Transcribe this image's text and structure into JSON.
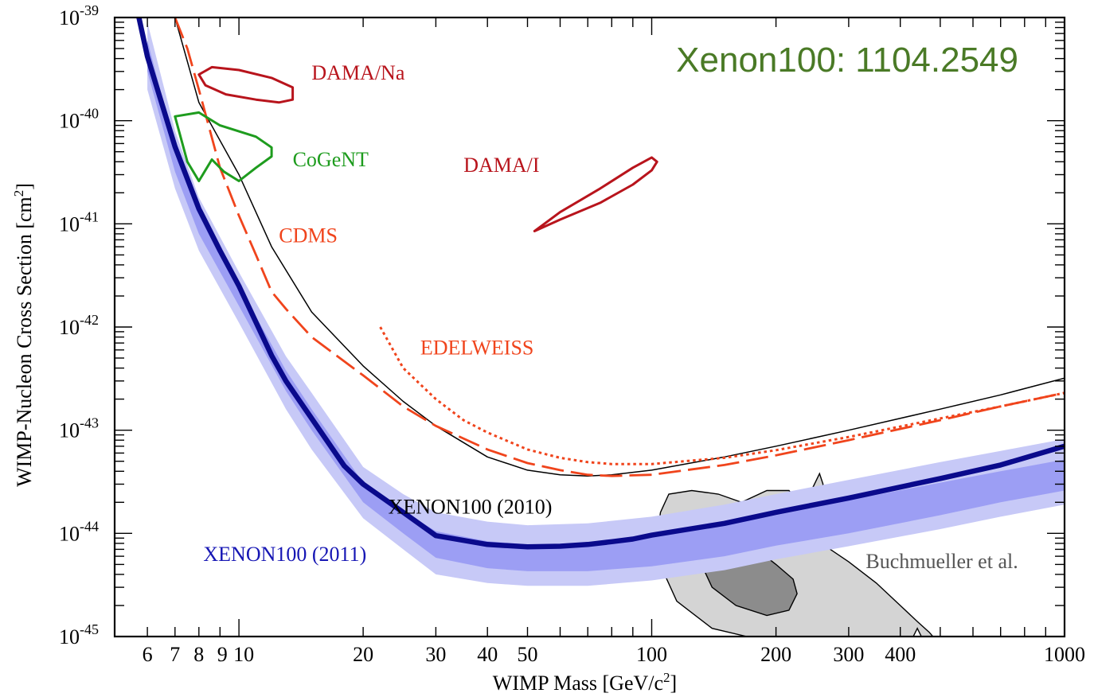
{
  "chart_data": {
    "type": "line",
    "title": "Xenon100: 1104.2549",
    "xlabel": "WIMP Mass [GeV/c",
    "xlabel_sup": "2",
    "xlabel_tail": "]",
    "ylabel": "WIMP-Nucleon Cross Section [cm",
    "ylabel_sup": "2",
    "ylabel_tail": "]",
    "x_scale": "log",
    "y_scale": "log",
    "xlim": [
      5,
      1000
    ],
    "ylim": [
      1e-45,
      1e-39
    ],
    "grid": false,
    "x_ticks": [
      {
        "v": 6,
        "label": "6"
      },
      {
        "v": 7,
        "label": "7"
      },
      {
        "v": 8,
        "label": "8"
      },
      {
        "v": 9,
        "label": "9"
      },
      {
        "v": 10,
        "label": "10"
      },
      {
        "v": 20,
        "label": "20"
      },
      {
        "v": 30,
        "label": "30"
      },
      {
        "v": 40,
        "label": "40"
      },
      {
        "v": 50,
        "label": "50"
      },
      {
        "v": 100,
        "label": "100"
      },
      {
        "v": 200,
        "label": "200"
      },
      {
        "v": 300,
        "label": "300"
      },
      {
        "v": 400,
        "label": "400"
      },
      {
        "v": 1000,
        "label": "1000"
      }
    ],
    "y_ticks": [
      {
        "exp": -45,
        "base": "10",
        "sup": "-45"
      },
      {
        "exp": -44,
        "base": "10",
        "sup": "-44"
      },
      {
        "exp": -43,
        "base": "10",
        "sup": "-43"
      },
      {
        "exp": -42,
        "base": "10",
        "sup": "-42"
      },
      {
        "exp": -41,
        "base": "10",
        "sup": "-41"
      },
      {
        "exp": -40,
        "base": "10",
        "sup": "-40"
      },
      {
        "exp": -39,
        "base": "10",
        "sup": "-39"
      }
    ],
    "colors": {
      "xenon2011": "#0a0a8c",
      "band_outer": "#c7c9f7",
      "band_inner": "#9c9ef4",
      "xenon2010": "#000000",
      "cdms": "#f0441c",
      "edelweiss": "#f0441c",
      "dama": "#b8141c",
      "cogent": "#1e9c1e",
      "susy_outer": "#d4d4d4",
      "susy_inner": "#8c8c8c",
      "banner": "#4a7a26"
    },
    "band_outer": {
      "x": [
        6,
        7,
        8,
        10,
        13,
        15,
        20,
        25,
        30,
        40,
        50,
        70,
        100,
        150,
        200,
        300,
        500,
        700,
        1000
      ],
      "lo": [
        2e-40,
        2.2e-41,
        5.5e-42,
        1.1e-42,
        1.6e-43,
        6.5e-44,
        1.4e-44,
        7e-45,
        4e-45,
        3.3e-45,
        3.1e-45,
        3.1e-45,
        3.5e-45,
        4.4e-45,
        5.6e-45,
        7.5e-45,
        1.1e-44,
        1.45e-44,
        1.9e-44
      ],
      "hi": [
        9e-40,
        8e-41,
        1.8e-41,
        3.4e-42,
        5.2e-43,
        2.3e-43,
        4.4e-44,
        2.4e-44,
        1.6e-44,
        1.3e-44,
        1.2e-44,
        1.25e-44,
        1.45e-44,
        1.9e-44,
        2.4e-44,
        3.3e-44,
        4.9e-44,
        6.3e-44,
        8.2e-44
      ]
    },
    "band_inner": {
      "x": [
        6,
        7,
        8,
        10,
        13,
        15,
        20,
        25,
        30,
        40,
        50,
        70,
        100,
        150,
        200,
        300,
        500,
        700,
        1000
      ],
      "lo": [
        3e-40,
        3.2e-41,
        8e-42,
        1.6e-42,
        2.4e-43,
        1e-43,
        2e-44,
        1e-44,
        5.8e-45,
        4.6e-45,
        4.3e-45,
        4.3e-45,
        4.8e-45,
        6e-45,
        7.6e-45,
        1e-44,
        1.5e-44,
        2e-44,
        2.6e-44
      ],
      "hi": [
        6e-40,
        5.6e-41,
        1.3e-41,
        2.5e-42,
        3.8e-43,
        1.6e-43,
        3.1e-44,
        1.65e-44,
        1.05e-44,
        8.4e-45,
        7.8e-45,
        8e-45,
        9.2e-45,
        1.2e-44,
        1.5e-44,
        2.1e-44,
        3.1e-44,
        4e-44,
        5.2e-44
      ]
    },
    "series": [
      {
        "name": "XENON100 (2011)",
        "key": "xenon2011",
        "x": [
          5.6,
          6,
          7,
          8,
          9,
          10,
          12,
          13,
          15,
          18,
          20,
          25,
          30,
          40,
          50,
          60,
          70,
          80,
          90,
          100,
          150,
          200,
          300,
          500,
          700,
          1000
        ],
        "y": [
          1.5e-39,
          4.2e-40,
          5.6e-41,
          1.4e-41,
          5.5e-42,
          2.5e-42,
          5.3e-43,
          3e-43,
          1.3e-43,
          4.5e-44,
          3e-44,
          1.6e-44,
          9.5e-45,
          7.8e-45,
          7.4e-45,
          7.5e-45,
          7.8e-45,
          8.3e-45,
          8.8e-45,
          9.6e-45,
          1.25e-44,
          1.6e-44,
          2.2e-44,
          3.4e-44,
          4.6e-44,
          7e-44
        ]
      },
      {
        "name": "XENON100 (2010)",
        "key": "xenon2010",
        "x": [
          7,
          8,
          10,
          12,
          15,
          20,
          25,
          30,
          40,
          50,
          60,
          70,
          80,
          100,
          150,
          200,
          300,
          500,
          700,
          1000
        ],
        "y": [
          1e-39,
          1.5e-40,
          3e-41,
          6e-42,
          1.4e-42,
          4.2e-43,
          1.9e-43,
          1.1e-43,
          5.5e-44,
          4.1e-44,
          3.7e-44,
          3.6e-44,
          3.7e-44,
          4.1e-44,
          5.5e-44,
          7e-44,
          1e-43,
          1.6e-43,
          2.2e-43,
          3.2e-43
        ]
      },
      {
        "name": "CDMS",
        "key": "cdms",
        "x": [
          7,
          7.5,
          8,
          9,
          10,
          11,
          12,
          13,
          15,
          20,
          25,
          30,
          40,
          50,
          60,
          70,
          80,
          100,
          150,
          200,
          300,
          500,
          700,
          1000,
          1020
        ],
        "y": [
          1e-39,
          5e-40,
          2e-40,
          3.5e-41,
          1.2e-41,
          5e-42,
          2.2e-42,
          1.5e-42,
          8e-43,
          3.4e-43,
          1.7e-43,
          1.1e-43,
          6.5e-44,
          4.8e-44,
          4.1e-44,
          3.7e-44,
          3.6e-44,
          3.7e-44,
          4.6e-44,
          5.7e-44,
          8e-44,
          1.25e-43,
          1.7e-43,
          2.3e-43,
          2.4e-43
        ]
      },
      {
        "name": "EDELWEISS",
        "key": "edelweiss",
        "x": [
          22,
          25,
          30,
          35,
          40,
          50,
          60,
          70,
          80,
          100,
          150,
          200,
          300,
          500,
          700,
          1000
        ],
        "y": [
          1e-42,
          4e-43,
          2e-43,
          1.25e-43,
          9.5e-44,
          6.5e-44,
          5.4e-44,
          4.9e-44,
          4.7e-44,
          4.7e-44,
          5.4e-44,
          6.4e-44,
          8.6e-44,
          1.3e-43,
          1.7e-43,
          2.3e-43
        ]
      }
    ],
    "regions": [
      {
        "name": "DAMA/Na",
        "key": "dama",
        "x": [
          8,
          8.6,
          10,
          12,
          13.5,
          13.5,
          12.5,
          11,
          9.3,
          8.3,
          8
        ],
        "y": [
          2.8e-40,
          3.3e-40,
          3.1e-40,
          2.6e-40,
          2.1e-40,
          1.6e-40,
          1.5e-40,
          1.6e-40,
          1.8e-40,
          2.2e-40,
          2.8e-40
        ]
      },
      {
        "name": "DAMA/I",
        "key": "dama",
        "x": [
          52,
          60,
          75,
          90,
          100,
          103,
          100,
          90,
          75,
          60,
          52
        ],
        "y": [
          8.5e-42,
          1.1e-41,
          1.6e-41,
          2.4e-41,
          3.3e-41,
          4e-41,
          4.4e-41,
          3.5e-41,
          2.2e-41,
          1.3e-41,
          8.5e-42
        ]
      },
      {
        "name": "CoGeNT",
        "key": "cogent",
        "x": [
          7,
          8,
          9,
          11,
          12,
          12,
          11,
          10,
          9.2,
          8.6,
          8,
          7.5,
          7
        ],
        "y": [
          1.1e-40,
          1.2e-40,
          9e-41,
          7e-41,
          5.5e-41,
          4.5e-41,
          3.5e-41,
          2.6e-41,
          3.2e-41,
          4.2e-41,
          2.6e-41,
          4e-41,
          1.1e-40
        ]
      }
    ],
    "susy": {
      "name": "Buchmueller et al.",
      "outer_x": [
        110,
        105,
        103,
        106,
        115,
        140,
        170,
        200,
        230,
        250,
        280,
        320,
        380,
        430,
        440,
        450,
        470,
        480,
        470,
        440,
        400,
        350,
        300,
        260,
        250,
        245,
        240,
        255,
        260,
        248,
        235,
        215,
        190,
        165,
        145,
        125,
        110
      ],
      "outer_y": [
        2.4e-44,
        1.6e-44,
        9e-45,
        4.5e-45,
        2.2e-45,
        1.2e-45,
        1e-45,
        1e-45,
        1e-45,
        1e-45,
        1e-45,
        1e-45,
        1e-45,
        1e-45,
        1.2e-45,
        1e-45,
        1e-45,
        1e-45,
        1.1e-45,
        1.4e-45,
        2e-45,
        3.3e-45,
        5.3e-45,
        7.8e-45,
        1e-44,
        1.5e-44,
        2.3e-44,
        3.8e-44,
        3e-44,
        1.3e-44,
        1.7e-44,
        2.6e-44,
        2.6e-44,
        2e-44,
        2.4e-44,
        2.6e-44,
        2.4e-44
      ],
      "inner_x": [
        125,
        128,
        140,
        160,
        190,
        215,
        225,
        220,
        200,
        175,
        150,
        135,
        125
      ],
      "inner_y": [
        1.3e-44,
        6.5e-45,
        3e-45,
        2e-45,
        1.6e-45,
        1.8e-45,
        2.6e-45,
        3.6e-45,
        5e-45,
        7.6e-45,
        1.05e-44,
        1.2e-44,
        1.3e-44
      ]
    },
    "annotations": [
      {
        "text": "DAMA/Na",
        "x": 15,
        "y": 2.5e-40,
        "key": "dama"
      },
      {
        "text": "DAMA/I",
        "x": 35,
        "y": 3.2e-41,
        "key": "dama"
      },
      {
        "text": "CoGeNT",
        "x": 13.5,
        "y": 3.6e-41,
        "key": "cogent"
      },
      {
        "text": "CDMS",
        "x": 12.5,
        "y": 6.6e-42,
        "key": "cdms"
      },
      {
        "text": "EDELWEISS",
        "x": 27.5,
        "y": 5.4e-43,
        "key": "edelweiss"
      },
      {
        "text": "XENON100 (2010)",
        "x": 23,
        "y": 1.56e-44,
        "key": "xenon2010"
      },
      {
        "text": "XENON100 (2011)",
        "x": 8.2,
        "y": 5.4e-45,
        "key": "xenon2011"
      },
      {
        "text": "Buchmueller et al.",
        "x": 330,
        "y": 4.6e-45,
        "key": "note_gray"
      }
    ]
  }
}
